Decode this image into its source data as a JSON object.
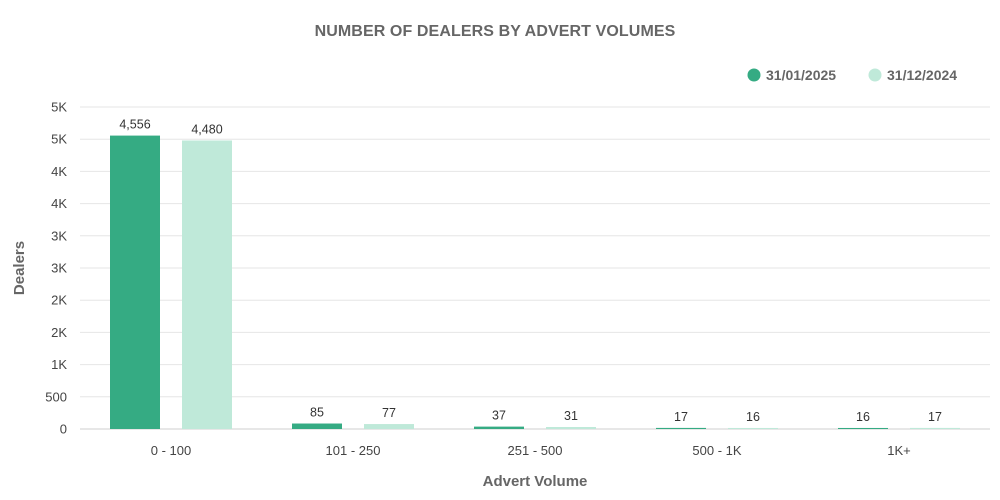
{
  "chart_data": {
    "type": "bar",
    "title": "NUMBER OF DEALERS BY ADVERT VOLUMES",
    "xlabel": "Advert Volume",
    "ylabel": "Dealers",
    "categories": [
      "0 - 100",
      "101 - 250",
      "251 - 500",
      "500 - 1K",
      "1K+"
    ],
    "series": [
      {
        "name": "31/01/2025",
        "color": "#35ab83",
        "values": [
          4556,
          85,
          37,
          17,
          16
        ]
      },
      {
        "name": "31/12/2024",
        "color": "#bfe9d9",
        "values": [
          4480,
          77,
          31,
          16,
          17
        ]
      }
    ],
    "data_labels": [
      [
        "4,556",
        "85",
        "37",
        "17",
        "16"
      ],
      [
        "4,480",
        "77",
        "31",
        "16",
        "17"
      ]
    ],
    "yticks": [
      {
        "value": 0,
        "label": "0"
      },
      {
        "value": 500,
        "label": "500"
      },
      {
        "value": 1000,
        "label": "1K"
      },
      {
        "value": 1500,
        "label": "2K"
      },
      {
        "value": 2000,
        "label": "2K"
      },
      {
        "value": 2500,
        "label": "3K"
      },
      {
        "value": 3000,
        "label": "3K"
      },
      {
        "value": 3500,
        "label": "4K"
      },
      {
        "value": 4000,
        "label": "4K"
      },
      {
        "value": 4500,
        "label": "5K"
      },
      {
        "value": 5000,
        "label": "5K"
      }
    ],
    "ylim": [
      0,
      5000
    ],
    "grid": true,
    "legend_position": "top-right"
  }
}
